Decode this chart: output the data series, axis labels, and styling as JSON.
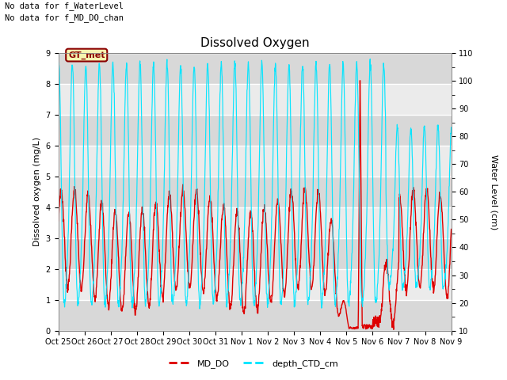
{
  "title": "Dissolved Oxygen",
  "text_no_data_1": "No data for f_WaterLevel",
  "text_no_data_2": "No data for f_MD_DO_chan",
  "gt_met_label": "GT_met",
  "ylabel_left": "Dissolved oxygen (mg/L)",
  "ylabel_right": "Water Level (cm)",
  "ylim_left": [
    0.0,
    9.0
  ],
  "ylim_right": [
    10,
    110
  ],
  "bg_color": "#e8e8e8",
  "fig_bg": "#ffffff",
  "line_MD_DO_color": "#dd0000",
  "line_CTD_color": "#00e5ff",
  "legend_MD_DO": "MD_DO",
  "legend_CTD": "depth_CTD_cm",
  "xtick_labels": [
    "Oct 25",
    "Oct 26",
    "Oct 27",
    "Oct 28",
    "Oct 29",
    "Oct 30",
    "Oct 31",
    "Nov 1",
    "Nov 2",
    "Nov 3",
    "Nov 4",
    "Nov 5",
    "Nov 6",
    "Nov 7",
    "Nov 8",
    "Nov 9"
  ],
  "grid_color": "#ffffff",
  "yticks_left": [
    0.0,
    1.0,
    2.0,
    3.0,
    4.0,
    5.0,
    6.0,
    7.0,
    8.0,
    9.0
  ],
  "yticks_right": [
    10,
    20,
    30,
    40,
    50,
    60,
    70,
    80,
    90,
    100,
    110
  ],
  "gray_band_light": "#ebebeb",
  "gray_band_dark": "#d8d8d8"
}
